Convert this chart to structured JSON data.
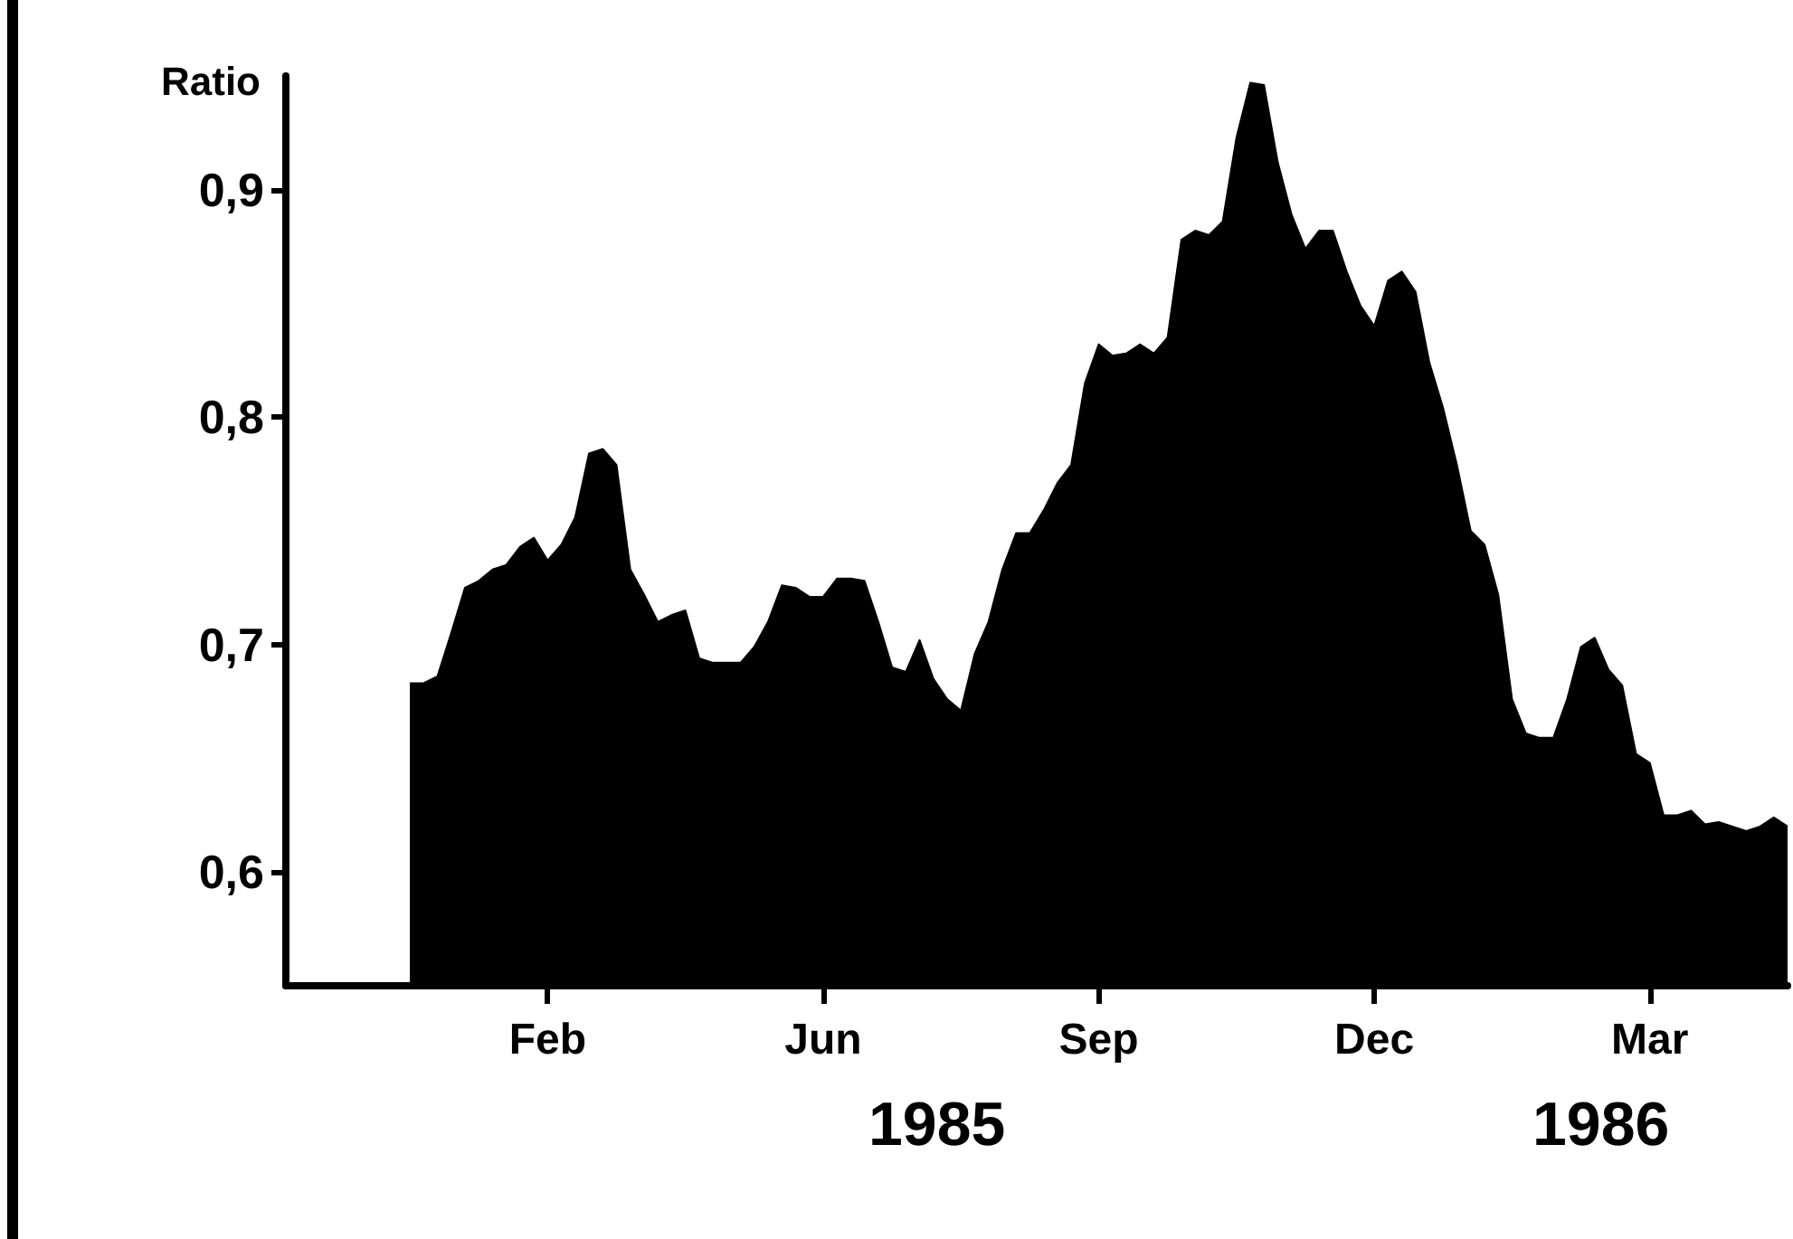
{
  "chart_data": {
    "type": "area",
    "ylabel": "Ratio",
    "categories": [
      null,
      null,
      null,
      null,
      null,
      null,
      null,
      null,
      null,
      null,
      null,
      null,
      null,
      null,
      null,
      null,
      null,
      null,
      null,
      "Feb",
      null,
      null,
      null,
      null,
      null,
      null,
      null,
      null,
      null,
      null,
      null,
      null,
      null,
      null,
      null,
      null,
      null,
      null,
      null,
      "Jun",
      null,
      null,
      null,
      null,
      null,
      null,
      null,
      null,
      null,
      null,
      null,
      null,
      null,
      null,
      null,
      null,
      null,
      null,
      null,
      "Sep",
      null,
      null,
      null,
      null,
      null,
      null,
      null,
      null,
      null,
      null,
      null,
      null,
      null,
      null,
      null,
      null,
      null,
      null,
      null,
      "Dec",
      null,
      null,
      null,
      null,
      null,
      null,
      null,
      null,
      null,
      null,
      null,
      null,
      null,
      null,
      null,
      null,
      null,
      null,
      null,
      "Mar",
      null,
      null,
      null,
      null,
      null,
      null,
      null,
      null,
      null,
      null
    ],
    "series": [
      {
        "color": "#000000",
        "values": [
          null,
          null,
          null,
          null,
          null,
          null,
          null,
          null,
          null,
          0.683,
          0.683,
          0.686,
          0.705,
          0.725,
          0.728,
          0.733,
          0.735,
          0.743,
          0.747,
          0.737,
          0.744,
          0.756,
          0.784,
          0.786,
          0.779,
          0.733,
          0.722,
          0.71,
          0.713,
          0.715,
          0.694,
          0.692,
          0.692,
          0.692,
          0.699,
          0.71,
          0.726,
          0.725,
          0.721,
          0.721,
          0.729,
          0.729,
          0.728,
          0.71,
          0.69,
          0.688,
          0.702,
          0.685,
          0.676,
          0.671,
          0.696,
          0.71,
          0.733,
          0.749,
          0.749,
          0.759,
          0.771,
          0.779,
          0.815,
          0.832,
          0.827,
          0.828,
          0.832,
          0.828,
          0.835,
          0.878,
          0.882,
          0.88,
          0.886,
          0.923,
          0.947,
          0.946,
          0.912,
          0.889,
          0.874,
          0.882,
          0.882,
          0.864,
          0.849,
          0.84,
          0.86,
          0.864,
          0.855,
          0.824,
          0.804,
          0.779,
          0.75,
          0.744,
          0.722,
          0.676,
          0.661,
          0.659,
          0.659,
          0.676,
          0.699,
          0.703,
          0.689,
          0.682,
          0.652,
          0.648,
          0.625,
          0.625,
          0.627,
          0.621,
          0.622,
          0.62,
          0.618,
          0.62,
          0.624,
          0.62
        ]
      }
    ],
    "ylim": [
      0.55,
      0.95
    ],
    "yticks": [
      {
        "value": 0.6,
        "label": "0,6"
      },
      {
        "value": 0.7,
        "label": "0,7"
      },
      {
        "value": 0.8,
        "label": "0,8"
      },
      {
        "value": 0.9,
        "label": "0,9"
      }
    ],
    "annotations": [
      "1985",
      "1986"
    ],
    "grid": false,
    "marker": "none"
  }
}
